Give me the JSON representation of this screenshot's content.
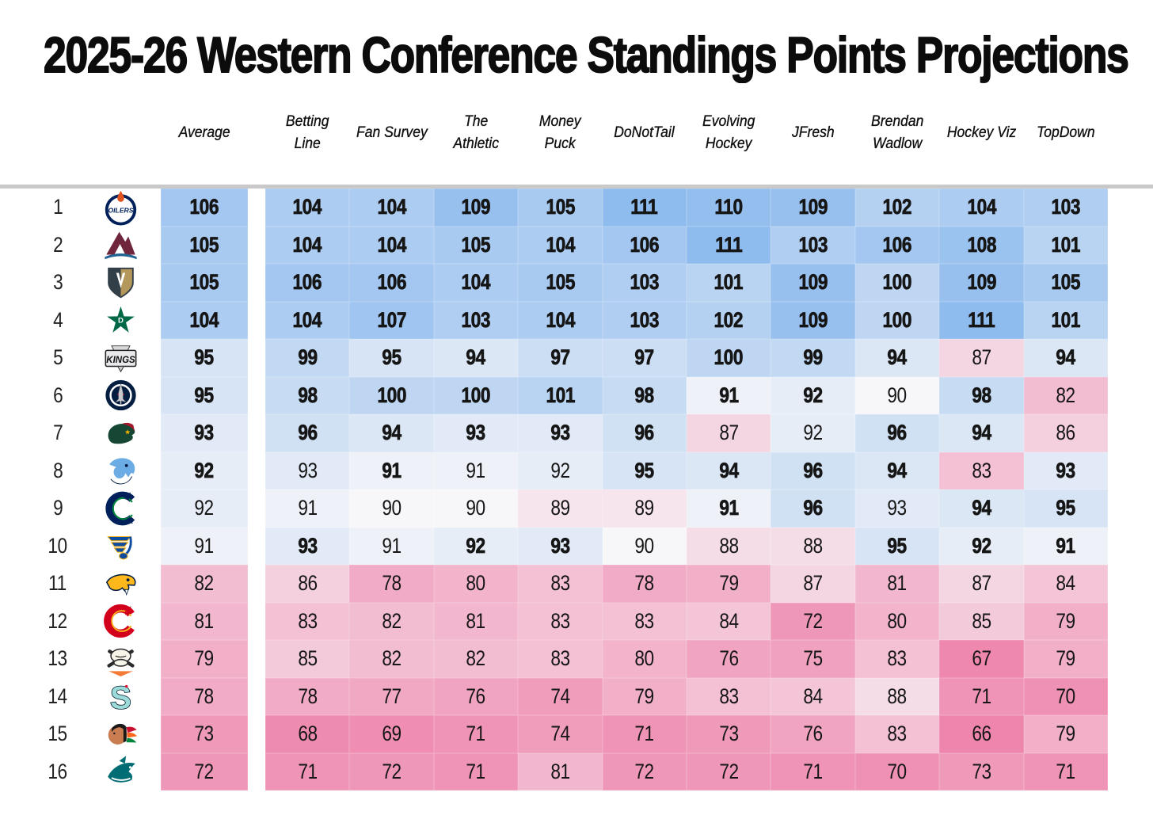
{
  "title": "2025-26 Western Conference Standings Points Projections",
  "chart_data": {
    "type": "heatmap",
    "title": "2025-26 Western Conference Standings Points Projections",
    "columns": [
      "Average",
      "Betting Line",
      "Fan Survey",
      "The Athletic",
      "Money Puck",
      "DoNotTail",
      "Evolving Hockey",
      "JFresh",
      "Brendan Wadlow",
      "Hockey Viz",
      "TopDown"
    ],
    "rank_min": 1,
    "rank_max": 16,
    "rows": [
      {
        "rank": 1,
        "team": "Edmonton Oilers",
        "logo": "oilers",
        "logo_text": "OILERS",
        "logo_colors": [
          "#00205B",
          "#E0531F",
          "#FFFFFF"
        ],
        "values": [
          106,
          104,
          104,
          109,
          105,
          111,
          110,
          109,
          102,
          104,
          103
        ],
        "bold": [
          true,
          true,
          true,
          true,
          true,
          true,
          true,
          true,
          true,
          true,
          true
        ]
      },
      {
        "rank": 2,
        "team": "Colorado Avalanche",
        "logo": "avalanche",
        "logo_text": "",
        "logo_colors": [
          "#6F263D",
          "#236192",
          "#FFFFFF"
        ],
        "values": [
          105,
          104,
          104,
          105,
          104,
          106,
          111,
          103,
          106,
          108,
          101
        ],
        "bold": [
          true,
          true,
          true,
          true,
          true,
          true,
          true,
          true,
          true,
          true,
          true
        ]
      },
      {
        "rank": 3,
        "team": "Vegas Golden Knights",
        "logo": "knights",
        "logo_text": "",
        "logo_colors": [
          "#B4975A",
          "#333F48",
          "#FFFFFF"
        ],
        "values": [
          105,
          106,
          106,
          104,
          105,
          103,
          101,
          109,
          100,
          109,
          105
        ],
        "bold": [
          true,
          true,
          true,
          true,
          true,
          true,
          true,
          true,
          true,
          true,
          true
        ]
      },
      {
        "rank": 4,
        "team": "Dallas Stars",
        "logo": "stars",
        "logo_text": "D",
        "logo_colors": [
          "#006847",
          "#8F8F24",
          "#FFFFFF"
        ],
        "values": [
          104,
          104,
          107,
          103,
          104,
          103,
          102,
          109,
          100,
          111,
          101
        ],
        "bold": [
          true,
          true,
          true,
          true,
          true,
          true,
          true,
          true,
          true,
          true,
          true
        ]
      },
      {
        "rank": 5,
        "team": "Los Angeles Kings",
        "logo": "kings",
        "logo_text": "KINGS",
        "logo_colors": [
          "#A2AAAD",
          "#111111",
          "#FFFFFF"
        ],
        "values": [
          95,
          99,
          95,
          94,
          97,
          97,
          100,
          99,
          94,
          87,
          94
        ],
        "bold": [
          true,
          true,
          true,
          true,
          true,
          true,
          true,
          true,
          true,
          false,
          true
        ]
      },
      {
        "rank": 6,
        "team": "Winnipeg Jets",
        "logo": "jets",
        "logo_text": "",
        "logo_colors": [
          "#041E42",
          "#AE122A",
          "#C8CACE"
        ],
        "values": [
          95,
          98,
          100,
          100,
          101,
          98,
          91,
          92,
          90,
          98,
          82
        ],
        "bold": [
          true,
          true,
          true,
          true,
          true,
          true,
          true,
          true,
          false,
          true,
          false
        ]
      },
      {
        "rank": 7,
        "team": "Minnesota Wild",
        "logo": "wild",
        "logo_text": "",
        "logo_colors": [
          "#154734",
          "#A6192E",
          "#EAAA00"
        ],
        "values": [
          93,
          96,
          94,
          93,
          93,
          96,
          87,
          92,
          96,
          94,
          86
        ],
        "bold": [
          true,
          true,
          true,
          true,
          true,
          true,
          false,
          false,
          true,
          true,
          false
        ]
      },
      {
        "rank": 8,
        "team": "Utah Mammoth",
        "logo": "mammoth",
        "logo_text": "",
        "logo_colors": [
          "#6CACE4",
          "#041E42",
          "#FFFFFF"
        ],
        "values": [
          92,
          93,
          91,
          91,
          92,
          95,
          94,
          96,
          94,
          83,
          93
        ],
        "bold": [
          true,
          false,
          true,
          false,
          false,
          true,
          true,
          true,
          true,
          false,
          true
        ]
      },
      {
        "rank": 9,
        "team": "Vancouver Canucks",
        "logo": "canucks",
        "logo_text": "",
        "logo_colors": [
          "#00205B",
          "#00843D",
          "#FFFFFF"
        ],
        "values": [
          92,
          91,
          90,
          90,
          89,
          89,
          91,
          96,
          93,
          94,
          95
        ],
        "bold": [
          false,
          false,
          false,
          false,
          false,
          false,
          true,
          true,
          false,
          true,
          true
        ]
      },
      {
        "rank": 10,
        "team": "St. Louis Blues",
        "logo": "blues",
        "logo_text": "",
        "logo_colors": [
          "#0E4CA1",
          "#FCB514",
          "#FFFFFF"
        ],
        "values": [
          91,
          93,
          91,
          92,
          93,
          90,
          88,
          88,
          95,
          92,
          91
        ],
        "bold": [
          false,
          true,
          false,
          true,
          true,
          false,
          false,
          false,
          true,
          true,
          true
        ]
      },
      {
        "rank": 11,
        "team": "Nashville Predators",
        "logo": "predators",
        "logo_text": "",
        "logo_colors": [
          "#FFB81C",
          "#041E42",
          "#FFFFFF"
        ],
        "values": [
          82,
          86,
          78,
          80,
          83,
          78,
          79,
          87,
          81,
          87,
          84
        ],
        "bold": [
          false,
          false,
          false,
          false,
          false,
          false,
          false,
          false,
          false,
          false,
          false
        ]
      },
      {
        "rank": 12,
        "team": "Calgary Flames",
        "logo": "flames",
        "logo_text": "",
        "logo_colors": [
          "#D2001C",
          "#FAAF19",
          "#FFFFFF"
        ],
        "values": [
          81,
          83,
          82,
          81,
          83,
          83,
          84,
          72,
          80,
          85,
          79
        ],
        "bold": [
          false,
          false,
          false,
          false,
          false,
          false,
          false,
          false,
          false,
          false,
          false
        ]
      },
      {
        "rank": 13,
        "team": "Anaheim Ducks",
        "logo": "ducks",
        "logo_text": "",
        "logo_colors": [
          "#F47A38",
          "#2B2B2B",
          "#F7F4EA"
        ],
        "values": [
          79,
          85,
          82,
          82,
          83,
          80,
          76,
          75,
          83,
          67,
          79
        ],
        "bold": [
          false,
          false,
          false,
          false,
          false,
          false,
          false,
          false,
          false,
          false,
          false
        ]
      },
      {
        "rank": 14,
        "team": "Seattle Kraken",
        "logo": "kraken",
        "logo_text": "S",
        "logo_colors": [
          "#9CDBD9",
          "#001628",
          "#E9072B"
        ],
        "values": [
          78,
          78,
          77,
          76,
          74,
          79,
          83,
          84,
          88,
          71,
          70
        ],
        "bold": [
          false,
          false,
          false,
          false,
          false,
          false,
          false,
          false,
          false,
          false,
          false
        ]
      },
      {
        "rank": 15,
        "team": "Chicago Blackhawks",
        "logo": "blackhawks",
        "logo_text": "",
        "logo_colors": [
          "#CB7D52",
          "#C8102E",
          "#00843D"
        ],
        "values": [
          73,
          68,
          69,
          71,
          74,
          71,
          73,
          76,
          83,
          66,
          79
        ],
        "bold": [
          false,
          false,
          false,
          false,
          false,
          false,
          false,
          false,
          false,
          false,
          false
        ]
      },
      {
        "rank": 16,
        "team": "San Jose Sharks",
        "logo": "sharks",
        "logo_text": "",
        "logo_colors": [
          "#006D75",
          "#E57200",
          "#FFFFFF"
        ],
        "values": [
          72,
          71,
          72,
          71,
          81,
          72,
          72,
          71,
          70,
          73,
          71
        ],
        "bold": [
          false,
          false,
          false,
          false,
          false,
          false,
          false,
          false,
          false,
          false,
          false
        ]
      }
    ],
    "color_scale": {
      "low": 66,
      "mid": 90,
      "high": 111,
      "low_color": "#ee85ac",
      "mid_color": "#f7f6f8",
      "high_color": "#8fbcee",
      "low_exp": 0.6,
      "high_exp": 0.8
    },
    "layout": {
      "grid": false,
      "legend": false,
      "divider_color": "#c9c9c9",
      "text_color": "#161616"
    }
  }
}
